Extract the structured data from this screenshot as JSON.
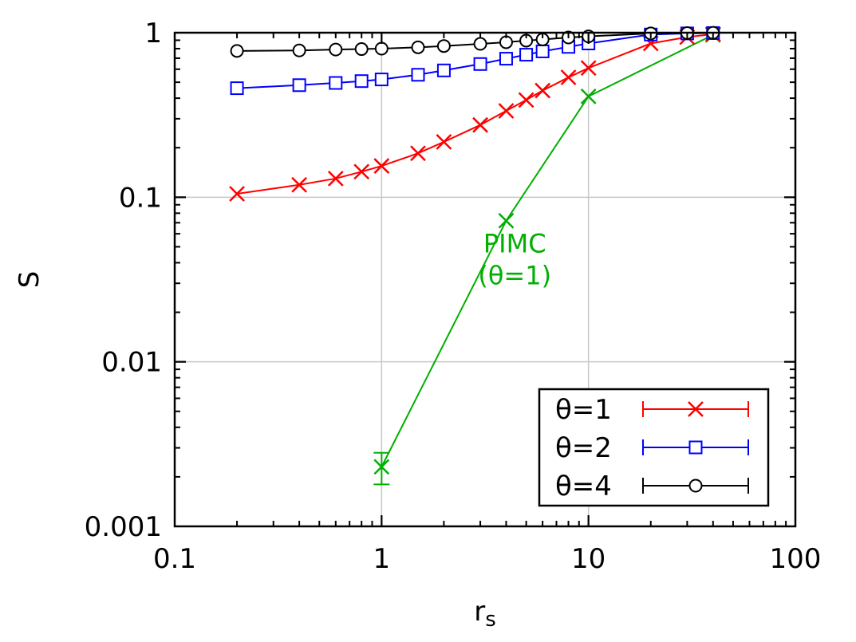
{
  "chart_data": {
    "type": "line",
    "xscale": "log",
    "yscale": "log",
    "xlim": [
      0.1,
      100
    ],
    "ylim": [
      0.001,
      1
    ],
    "grid": true,
    "xlabel_main": "r",
    "xlabel_sub": "s",
    "ylabel": "S",
    "x_tick_labels": [
      {
        "value": 0.1,
        "label": "0.1"
      },
      {
        "value": 1,
        "label": "1"
      },
      {
        "value": 10,
        "label": "10"
      },
      {
        "value": 100,
        "label": "100"
      }
    ],
    "y_tick_labels": [
      {
        "value": 0.001,
        "label": "0.001"
      },
      {
        "value": 0.01,
        "label": "0.01"
      },
      {
        "value": 0.1,
        "label": "0.1"
      },
      {
        "value": 1,
        "label": "1"
      }
    ],
    "legend_position": "bottom-right",
    "series": [
      {
        "name": "θ=1",
        "color": "#ff0000",
        "marker": "x",
        "x": [
          0.2,
          0.4,
          0.6,
          0.8,
          1.0,
          1.5,
          2.0,
          3.0,
          4.0,
          5.0,
          6.0,
          8.0,
          10.0,
          20.0,
          30.0,
          40.0
        ],
        "y": [
          0.105,
          0.119,
          0.13,
          0.143,
          0.155,
          0.185,
          0.217,
          0.275,
          0.335,
          0.39,
          0.445,
          0.535,
          0.61,
          0.86,
          0.94,
          0.98
        ]
      },
      {
        "name": "θ=2",
        "color": "#0000ff",
        "marker": "square",
        "x": [
          0.2,
          0.4,
          0.6,
          0.8,
          1.0,
          1.5,
          2.0,
          3.0,
          4.0,
          5.0,
          6.0,
          8.0,
          10.0,
          20.0,
          30.0,
          40.0
        ],
        "y": [
          0.46,
          0.48,
          0.495,
          0.508,
          0.52,
          0.555,
          0.59,
          0.645,
          0.695,
          0.735,
          0.77,
          0.82,
          0.86,
          0.975,
          0.99,
          0.995
        ]
      },
      {
        "name": "θ=4",
        "color": "#000000",
        "marker": "circle",
        "x": [
          0.2,
          0.4,
          0.6,
          0.8,
          1.0,
          1.5,
          2.0,
          3.0,
          4.0,
          5.0,
          6.0,
          8.0,
          10.0,
          20.0,
          30.0,
          40.0
        ],
        "y": [
          0.775,
          0.78,
          0.79,
          0.795,
          0.8,
          0.815,
          0.83,
          0.855,
          0.875,
          0.895,
          0.91,
          0.935,
          0.95,
          0.99,
          0.995,
          0.998
        ]
      },
      {
        "name": "PIMC (θ=1)",
        "color": "#00b000",
        "marker": "x",
        "in_legend": false,
        "x": [
          1.0,
          4.0,
          10.0,
          40.0
        ],
        "y": [
          0.0023,
          0.072,
          0.41,
          0.97
        ],
        "y_err_low": [
          0.0018,
          0.072,
          0.41,
          0.97
        ],
        "y_err_high": [
          0.0028,
          0.072,
          0.41,
          0.97
        ]
      }
    ],
    "annotations": [
      {
        "text_line1": "PIMC",
        "text_line2": "(θ=1)",
        "color": "#00b000",
        "x": 4.4,
        "y": 0.037
      }
    ]
  }
}
